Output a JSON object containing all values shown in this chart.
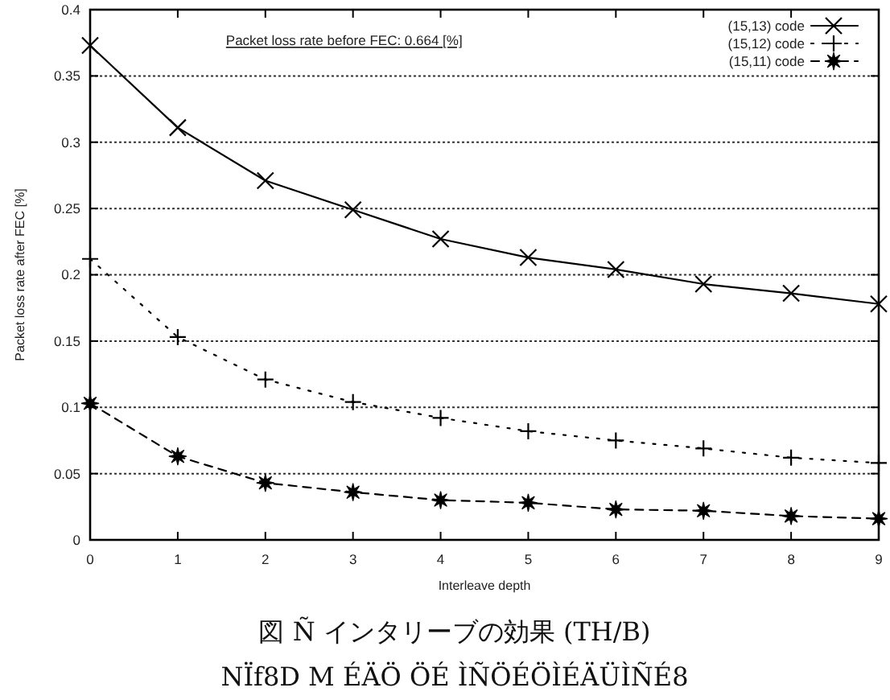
{
  "chart_data": {
    "type": "line",
    "xlabel": "Interleave depth",
    "ylabel": "Packet loss rate after FEC [%]",
    "x": [
      0,
      1,
      2,
      3,
      4,
      5,
      6,
      7,
      8,
      9
    ],
    "xlim": [
      0,
      9
    ],
    "xticks": [
      0,
      1,
      2,
      3,
      4,
      5,
      6,
      7,
      8,
      9
    ],
    "ylim": [
      0,
      0.4
    ],
    "yticks": [
      0,
      0.05,
      0.1,
      0.15,
      0.2,
      0.25,
      0.3,
      0.35,
      0.4
    ],
    "grid": "y",
    "legend": "top right",
    "series": [
      {
        "name": "(15,13) code",
        "color": "#000000",
        "marker": "x",
        "line_style": "solid",
        "values": [
          0.373,
          0.311,
          0.271,
          0.249,
          0.227,
          0.213,
          0.204,
          0.193,
          0.186,
          0.178
        ]
      },
      {
        "name": "(15,12) code",
        "color": "#000000",
        "marker": "cross",
        "line_style": "dotted",
        "values": [
          0.212,
          0.153,
          0.121,
          0.104,
          0.092,
          0.082,
          0.075,
          0.069,
          0.062,
          0.058
        ]
      },
      {
        "name": "(15,11) code",
        "color": "#000000",
        "marker": "star",
        "line_style": "dashed",
        "values": [
          0.103,
          0.063,
          0.043,
          0.036,
          0.03,
          0.028,
          0.023,
          0.022,
          0.018,
          0.016
        ]
      }
    ],
    "annotations": [
      "Packet loss rate before FEC: 0.664 [%]",
      "図 Ñ インタリーブの効果 (TH/B)",
      "NÏf8D M ÉÄÖ ÖÉ ÌÑÖÉÖÌÉÄÜÌÑÉ8"
    ]
  }
}
